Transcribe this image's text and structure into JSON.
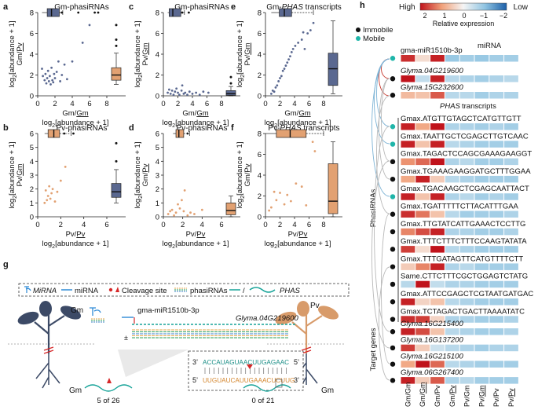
{
  "panel_letters": {
    "a": "a",
    "b": "b",
    "c": "c",
    "d": "d",
    "e": "e",
    "f": "f",
    "g": "g",
    "h": "h"
  },
  "axis_texts": {
    "log2": "log",
    "sub2": "2",
    "abund": "[abundance + 1]",
    "gm_pv": "Gm/Pv",
    "pv_gm": "Pv/Gm",
    "gm_gmu": "Gm/Gm",
    "pv_pvu": "Pv/Pv",
    "plus1": "+ 1]"
  },
  "chart_data": [
    {
      "id": "a",
      "type": "scatter",
      "title": "Gm-phasiRNAs",
      "color": "#5a6890",
      "xlabel": "Gm/Gm log2[abundance + 1]",
      "ylabel": "log2[abundance + 1] Gm/Pv",
      "xlim": [
        0,
        8
      ],
      "ylim": [
        0,
        8
      ],
      "xticks": [
        "0",
        "2",
        "4",
        "6",
        "8"
      ],
      "yticks": [
        "0",
        "2",
        "4",
        "6",
        "8"
      ],
      "points": [
        [
          0.5,
          2.6
        ],
        [
          0.6,
          1.9
        ],
        [
          0.8,
          1.5
        ],
        [
          0.9,
          2.1
        ],
        [
          1.0,
          1.2
        ],
        [
          1.1,
          1.7
        ],
        [
          1.2,
          2.4
        ],
        [
          1.3,
          1.4
        ],
        [
          1.4,
          1.9
        ],
        [
          1.5,
          1.1
        ],
        [
          1.6,
          2.7
        ],
        [
          1.7,
          1.5
        ],
        [
          1.8,
          1.3
        ],
        [
          1.9,
          2.1
        ],
        [
          2.0,
          1.7
        ],
        [
          2.2,
          2.3
        ],
        [
          2.4,
          3.3
        ],
        [
          2.6,
          1.4
        ],
        [
          2.8,
          2.0
        ],
        [
          3.1,
          3.0
        ],
        [
          3.4,
          1.6
        ],
        [
          4.0,
          3.3
        ],
        [
          5.2,
          5.1
        ],
        [
          6.0,
          6.8
        ]
      ],
      "top_outliers": [
        [
          2.8,
          8.0
        ],
        [
          4.7,
          8.0
        ],
        [
          6.6,
          8.0
        ],
        [
          7.0,
          8.0
        ]
      ],
      "boxplot_x": {
        "q1": 1.1,
        "median": 1.6,
        "q3": 2.5,
        "whisker_low": 0.5,
        "whisker_high": 2.9
      },
      "boxplot_y": {
        "q1": 1.5,
        "median": 2.0,
        "q3": 2.7,
        "whisker_low": 1.1,
        "whisker_high": 4.1,
        "outliers": [
          4.8,
          5.4,
          6.8
        ]
      }
    },
    {
      "id": "b",
      "type": "scatter",
      "title": "Pv-phasiRNAs",
      "color": "#e2a172",
      "xlabel": "Pv/Pv log2[abundance + 1]",
      "ylabel": "log2[abundance + 1] Pv/Gm",
      "xlim": [
        0,
        6
      ],
      "ylim": [
        0,
        6
      ],
      "xticks": [
        "0",
        "2",
        "4",
        "6"
      ],
      "yticks": [
        "0",
        "1",
        "2",
        "3",
        "4",
        "5",
        "6"
      ],
      "points": [
        [
          0.6,
          1.0
        ],
        [
          0.7,
          1.9
        ],
        [
          0.8,
          1.2
        ],
        [
          0.9,
          1.5
        ],
        [
          1.0,
          2.2
        ],
        [
          1.1,
          1.3
        ],
        [
          1.2,
          1.7
        ],
        [
          1.3,
          2.0
        ],
        [
          1.5,
          1.1
        ],
        [
          1.7,
          1.8
        ],
        [
          2.0,
          2.6
        ],
        [
          2.4,
          3.6
        ]
      ],
      "top_outliers": [
        [
          2.3,
          6.0
        ],
        [
          3.1,
          6.0
        ]
      ],
      "boxplot_x": {
        "q1": 0.9,
        "median": 1.4,
        "q3": 1.9,
        "whisker_low": 0.6,
        "whisker_high": 2.9
      },
      "boxplot_y": {
        "q1": 1.4,
        "median": 1.8,
        "q3": 2.4,
        "whisker_low": 1.0,
        "whisker_high": 3.4,
        "outliers": [
          4.0,
          5.3
        ]
      }
    },
    {
      "id": "c",
      "type": "scatter",
      "title": "Gm-phasiRNAs",
      "color": "#5a6890",
      "xlabel": "Gm/Gm log2[abundance + 1]",
      "ylabel": "log2[abundance + 1] Pv/Gm",
      "xlim": [
        0,
        8
      ],
      "ylim": [
        0,
        8
      ],
      "xticks": [
        "0",
        "2",
        "4",
        "6",
        "8"
      ],
      "yticks": [
        "0",
        "2",
        "4",
        "6",
        "8"
      ],
      "points": [
        [
          0.6,
          0.3
        ],
        [
          0.8,
          0.6
        ],
        [
          1.0,
          0.2
        ],
        [
          1.2,
          0.5
        ],
        [
          1.4,
          0.1
        ],
        [
          1.6,
          0.4
        ],
        [
          1.8,
          0.7
        ],
        [
          2.0,
          0.3
        ],
        [
          2.2,
          0.1
        ],
        [
          2.5,
          0.5
        ],
        [
          2.8,
          0.2
        ],
        [
          3.0,
          0.3
        ],
        [
          3.3,
          0.1
        ],
        [
          3.6,
          0.4
        ],
        [
          4.0,
          0.2
        ],
        [
          4.5,
          0.3
        ],
        [
          5.0,
          0.1
        ],
        [
          5.5,
          0.4
        ],
        [
          6.2,
          0.3
        ],
        [
          2.6,
          1.0
        ]
      ],
      "top_outliers": [
        [
          2.6,
          8.0
        ],
        [
          3.5,
          8.0
        ]
      ],
      "boxplot_x": {
        "q1": 0.8,
        "median": 1.3,
        "q3": 2.4,
        "whisker_low": 0.6,
        "whisker_high": 2.9
      },
      "boxplot_y": {
        "q1": 0.05,
        "median": 0.2,
        "q3": 0.5,
        "whisker_low": 0.0,
        "whisker_high": 0.9,
        "outliers": [
          1.2,
          1.8
        ]
      }
    },
    {
      "id": "d",
      "type": "scatter",
      "title": "Pv-phasiRNAs",
      "color": "#e2a172",
      "xlabel": "Pv/Pv log2[abundance + 1]",
      "ylabel": "log2[abundance + 1] Gm/Pv",
      "xlim": [
        0,
        6
      ],
      "ylim": [
        0,
        6
      ],
      "xticks": [
        "0",
        "2",
        "4",
        "6"
      ],
      "yticks": [
        "0",
        "1",
        "2",
        "3",
        "4",
        "5",
        "6"
      ],
      "points": [
        [
          0.5,
          0.2
        ],
        [
          0.7,
          0.4
        ],
        [
          0.9,
          0.5
        ],
        [
          1.1,
          0.1
        ],
        [
          1.3,
          0.3
        ],
        [
          1.5,
          0.9
        ],
        [
          1.7,
          0.6
        ],
        [
          1.9,
          1.2
        ],
        [
          2.1,
          0.4
        ],
        [
          2.5,
          0.1
        ],
        [
          2.8,
          0.3
        ],
        [
          3.2,
          0.2
        ],
        [
          4.0,
          0.5
        ],
        [
          2.2,
          1.9
        ]
      ],
      "top_outliers": [
        [
          2.5,
          6.0
        ]
      ],
      "boxplot_x": {
        "q1": 1.3,
        "median": 1.6,
        "q3": 2.1,
        "whisker_low": 1.0,
        "whisker_high": 2.7
      },
      "boxplot_y": {
        "q1": 0.15,
        "median": 0.45,
        "q3": 1.0,
        "whisker_low": 0.0,
        "whisker_high": 1.5,
        "outliers": []
      }
    },
    {
      "id": "e",
      "type": "scatter",
      "title": "Gm-PHAS transcripts",
      "color": "#5a6890",
      "xlabel": "Gm/Gm log2[abundance + 1]",
      "ylabel": "log2[abundance + 1] Pv/Gm",
      "xlim": [
        0,
        8
      ],
      "ylim": [
        0,
        8
      ],
      "xticks": [
        "0",
        "2",
        "4",
        "6",
        "8"
      ],
      "yticks": [
        "0",
        "2",
        "4",
        "6",
        "8"
      ],
      "points": [
        [
          0.8,
          0.2
        ],
        [
          1.0,
          0.5
        ],
        [
          1.2,
          0.4
        ],
        [
          1.4,
          0.8
        ],
        [
          1.6,
          1.0
        ],
        [
          1.8,
          1.4
        ],
        [
          2.0,
          1.7
        ],
        [
          2.2,
          1.9
        ],
        [
          2.4,
          2.4
        ],
        [
          2.6,
          2.6
        ],
        [
          2.8,
          2.9
        ],
        [
          3.0,
          3.2
        ],
        [
          3.2,
          3.5
        ],
        [
          3.4,
          3.8
        ],
        [
          3.6,
          4.2
        ],
        [
          3.8,
          4.5
        ],
        [
          4.1,
          4.8
        ],
        [
          4.5,
          5.1
        ],
        [
          5.0,
          5.4
        ],
        [
          5.2,
          6.1
        ],
        [
          5.8,
          6.0
        ],
        [
          6.2,
          6.3
        ],
        [
          6.6,
          7.0
        ],
        [
          5.4,
          4.5
        ]
      ],
      "top_outliers": [],
      "boxplot_x": {
        "q1": 1.9,
        "median": 2.6,
        "q3": 3.6,
        "whisker_low": 0.8,
        "whisker_high": 6.6
      },
      "boxplot_y": {
        "q1": 1.0,
        "median": 2.6,
        "q3": 4.1,
        "whisker_low": 0.2,
        "whisker_high": 7.2,
        "outliers": []
      }
    },
    {
      "id": "f",
      "type": "scatter",
      "title": "Pv-PHAS transcripts",
      "color": "#e2a172",
      "xlabel": "Pv/Pv log2[abundance + 1]",
      "ylabel": "log2[abundance + 1] Gm/Pv",
      "xlim": [
        0,
        8
      ],
      "ylim": [
        0,
        8
      ],
      "xticks": [
        "0",
        "2",
        "4",
        "6",
        "8"
      ],
      "yticks": [
        "0",
        "2",
        "4",
        "6",
        "8"
      ],
      "points": [
        [
          0.5,
          0.6
        ],
        [
          0.8,
          0.9
        ],
        [
          1.2,
          2.4
        ],
        [
          1.5,
          1.6
        ],
        [
          2.0,
          2.3
        ],
        [
          2.6,
          1.2
        ],
        [
          3.0,
          2.1
        ],
        [
          3.5,
          1.5
        ],
        [
          4.2,
          3.2
        ],
        [
          5.0,
          2.9
        ],
        [
          6.5,
          7.2
        ],
        [
          6.8,
          6.3
        ],
        [
          5.6,
          1.1
        ]
      ],
      "top_outliers": [],
      "boxplot_x": {
        "q1": 1.5,
        "median": 3.4,
        "q3": 5.6,
        "whisker_low": 0.0,
        "whisker_high": 8.0
      },
      "boxplot_y": {
        "q1": 0.3,
        "median": 1.5,
        "q3": 5.1,
        "whisker_low": 0.0,
        "whisker_high": 7.2,
        "outliers": []
      }
    }
  ],
  "panel_g": {
    "legend": {
      "mirna_italic": "MiRNA",
      "mirna": "miRNA",
      "cleavage": "Cleavage site",
      "phasirnas": "phasiRNAs",
      "slash": "/",
      "phas": "PHAS"
    },
    "plant_left": "Gm",
    "plant_right": "Pv",
    "root_left": "Gm",
    "root_right": "Gm",
    "mirna_name": "gma-miR1510b-3p",
    "target": "Glyma.04G219600",
    "strand_sign": "±",
    "seq_top": "ACCAUAGUAACUUGAGAAC",
    "seq_bottom": "UUGUAUCAUUGAAACUCUUG",
    "seq_top_left": "3’",
    "seq_top_right": "5’",
    "seq_bottom_left": "5’",
    "seq_bottom_right": "3’",
    "count_left": "5 of 26",
    "count_right": "0 of 21",
    "colors": {
      "gm_plant": "#3c4a66",
      "pv_plant": "#d89b6a",
      "cleavage": "#d62728",
      "phas": "#17a398"
    }
  },
  "panel_h": {
    "colorbar": {
      "high": "High",
      "low": "Low",
      "ticks": [
        "2",
        "1",
        "0",
        "−1",
        "−2"
      ],
      "label": "Relative expression"
    },
    "mobility_legend": {
      "immobile": "Immobile",
      "mobile": "Mobile"
    },
    "mirna_header": "miRNA",
    "phas_header": "PHAS transcripts",
    "section_phasirnas": "PhasiRNAs",
    "section_targets": "Target genes",
    "column_labels": [
      "Gm/Gm",
      "Gm/Gm",
      "Gm/Pv",
      "Gm/Pv",
      "Pv/Gm",
      "Pv/Gm",
      "Pv/Pv",
      "Pv/Pv"
    ],
    "top_rows": [
      {
        "label": "gma-miR1510b-3p",
        "italic": false,
        "dot": "teal",
        "values": [
          1.8,
          0.3,
          1.9,
          -0.9,
          -0.8,
          -0.9,
          -0.8,
          -0.8
        ]
      },
      {
        "label": "Glyma.04G219600",
        "italic": true,
        "dot": "black",
        "values": [
          2.0,
          -0.5,
          1.9,
          -0.6,
          -0.7,
          -0.8,
          -0.7,
          -0.6
        ]
      },
      {
        "label": "Glyma.15G232600",
        "italic": true,
        "dot": "black",
        "values": [
          0.7,
          0.6,
          1.5,
          -0.6,
          -0.6,
          -0.8,
          -0.7,
          -0.7
        ]
      }
    ],
    "phasi_rows": [
      {
        "label": "Gmax.ATGTTGTAGCTCATGTTGTT",
        "dot": "teal",
        "values": [
          1.9,
          0.9,
          2.0,
          -0.7,
          -0.7,
          -0.8,
          -0.7,
          -0.8
        ]
      },
      {
        "label": "Gmax.TAATTGCTCGAGCTTGTCAAC",
        "dot": "teal",
        "values": [
          1.9,
          0.6,
          1.9,
          -0.6,
          -0.7,
          -0.8,
          -0.8,
          -0.8
        ]
      },
      {
        "label": "Gmax.TAGACTCCAGCGAAAGAAGGT",
        "dot": "black",
        "values": [
          1.1,
          1.4,
          2.0,
          -0.7,
          -0.6,
          -0.8,
          -0.8,
          -0.7
        ]
      },
      {
        "label": "Gmax.TGAAAGAAGGATGCTTTGGAA",
        "dot": "black",
        "values": [
          0.9,
          1.9,
          0.5,
          -0.6,
          -0.7,
          -0.8,
          -0.8,
          -0.8
        ]
      },
      {
        "label": "Gmax.TGACAAGCTCGAGCAATTACT",
        "dot": "teal",
        "values": [
          1.9,
          0.6,
          1.9,
          -0.7,
          -0.6,
          -0.8,
          -0.7,
          -0.8
        ]
      },
      {
        "label": "Gmax.TGATTTTTCTTACATTTGAA",
        "dot": "black",
        "values": [
          1.8,
          1.3,
          0.6,
          -0.6,
          -0.8,
          -0.8,
          -0.8,
          -0.7
        ]
      },
      {
        "label": "Gmax.TTGTATCATTGAAACTCCTTG",
        "dot": "black",
        "values": [
          1.2,
          1.6,
          1.9,
          -0.7,
          -0.7,
          -0.8,
          -0.8,
          -0.7
        ]
      },
      {
        "label": "Gmax.TTTCTTTCTTTCCAAGTATATA",
        "dot": "black",
        "values": [
          1.7,
          0.3,
          2.0,
          -0.6,
          -0.7,
          -0.8,
          -0.8,
          -0.8
        ]
      },
      {
        "label": "Gmax.TTTGATAGTTCATGTTTTCTT",
        "dot": "black",
        "values": [
          0.5,
          1.2,
          1.9,
          -0.7,
          -0.6,
          -0.8,
          -0.8,
          -0.8
        ]
      },
      {
        "label": "Same.CTTCTTTCGCTGGAGTCTATG",
        "dot": "black",
        "values": [
          -0.6,
          2.4,
          -0.5,
          -0.7,
          -0.7,
          -0.8,
          -0.8,
          -0.8
        ]
      },
      {
        "label": "Gmax.ATTCCGAGCTCGTAATGATGAC",
        "dot": "black",
        "values": [
          1.9,
          0.4,
          0.6,
          -0.6,
          -0.7,
          -0.8,
          -0.8,
          -0.8
        ]
      },
      {
        "label": "Gmax.TCTAGACTGACTTAAAATATC",
        "dot": "black",
        "values": [
          1.8,
          1.7,
          0.4,
          -0.7,
          -0.7,
          -0.8,
          -0.8,
          -0.7
        ]
      }
    ],
    "target_rows": [
      {
        "label": "Glyma.16G215400",
        "dot": "black",
        "values": [
          1.9,
          1.6,
          0.6,
          -0.6,
          -0.7,
          -0.8,
          -0.8,
          -0.7
        ]
      },
      {
        "label": "Glyma.16G137200",
        "dot": "black",
        "values": [
          1.7,
          0.5,
          -0.4,
          -0.6,
          -0.7,
          -0.8,
          -0.7,
          -0.7
        ]
      },
      {
        "label": "Glyma.16G215100",
        "dot": "black",
        "values": [
          0.9,
          2.2,
          1.4,
          -0.6,
          -0.7,
          -0.8,
          -0.8,
          -0.8
        ]
      },
      {
        "label": "Glyma.06G267400",
        "dot": "black",
        "values": [
          1.9,
          0.5,
          1.5,
          -0.7,
          -0.6,
          -0.8,
          -0.8,
          -0.8
        ]
      }
    ]
  }
}
